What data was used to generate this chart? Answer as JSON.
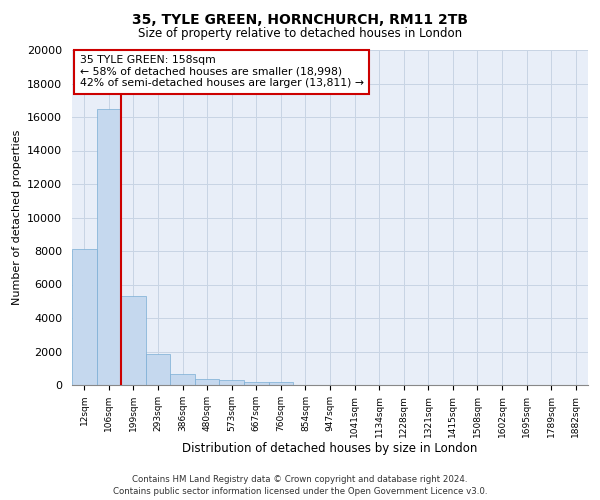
{
  "title_line1": "35, TYLE GREEN, HORNCHURCH, RM11 2TB",
  "title_line2": "Size of property relative to detached houses in London",
  "xlabel": "Distribution of detached houses by size in London",
  "ylabel": "Number of detached properties",
  "bar_color": "#c5d8ee",
  "bar_edge_color": "#7aadd4",
  "grid_color": "#c8d4e4",
  "background_color": "#e8eef8",
  "vline_color": "#cc0000",
  "vline_position": 1.5,
  "annotation_box_color": "#ffffff",
  "annotation_box_edge": "#cc0000",
  "annotation_text": "35 TYLE GREEN: 158sqm",
  "annotation_line1": "← 58% of detached houses are smaller (18,998)",
  "annotation_line2": "42% of semi-detached houses are larger (13,811) →",
  "categories": [
    "12sqm",
    "106sqm",
    "199sqm",
    "293sqm",
    "386sqm",
    "480sqm",
    "573sqm",
    "667sqm",
    "760sqm",
    "854sqm",
    "947sqm",
    "1041sqm",
    "1134sqm",
    "1228sqm",
    "1321sqm",
    "1415sqm",
    "1508sqm",
    "1602sqm",
    "1695sqm",
    "1789sqm",
    "1882sqm"
  ],
  "values": [
    8100,
    16500,
    5300,
    1850,
    650,
    350,
    280,
    200,
    160,
    0,
    0,
    0,
    0,
    0,
    0,
    0,
    0,
    0,
    0,
    0,
    0
  ],
  "ylim": [
    0,
    20000
  ],
  "yticks": [
    0,
    2000,
    4000,
    6000,
    8000,
    10000,
    12000,
    14000,
    16000,
    18000,
    20000
  ],
  "footnote_line1": "Contains HM Land Registry data © Crown copyright and database right 2024.",
  "footnote_line2": "Contains public sector information licensed under the Open Government Licence v3.0."
}
